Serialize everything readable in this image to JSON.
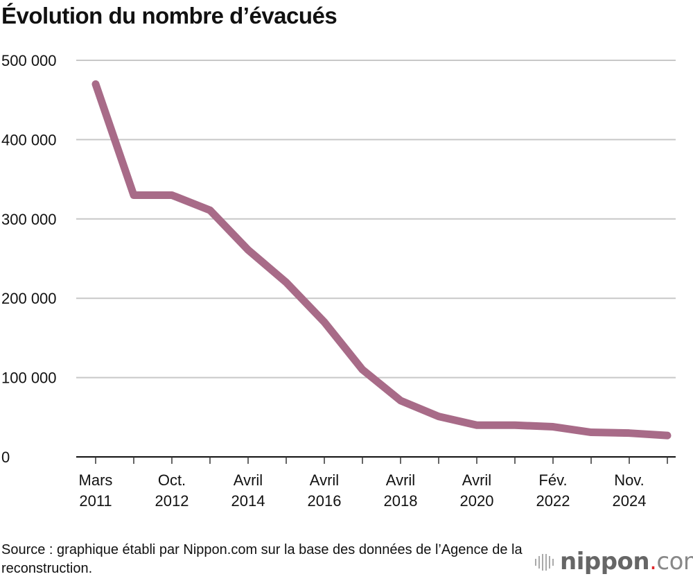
{
  "chart_data": {
    "type": "line",
    "title": "Évolution du nombre d’évacués",
    "xlabel": "",
    "ylabel": "",
    "ylim": [
      0,
      500000
    ],
    "yticks": [
      0,
      100000,
      200000,
      300000,
      400000,
      500000
    ],
    "ytick_labels": [
      "0",
      "100 000",
      "200 000",
      "300 000",
      "400 000",
      "500 000"
    ],
    "grid": true,
    "x_tick_labels": [
      {
        "index": 0,
        "line1": "Mars",
        "line2": "2011"
      },
      {
        "index": 2,
        "line1": "Oct.",
        "line2": "2012"
      },
      {
        "index": 4,
        "line1": "Avril",
        "line2": "2014"
      },
      {
        "index": 6,
        "line1": "Avril",
        "line2": "2016"
      },
      {
        "index": 8,
        "line1": "Avril",
        "line2": "2018"
      },
      {
        "index": 10,
        "line1": "Avril",
        "line2": "2020"
      },
      {
        "index": 12,
        "line1": "Fév.",
        "line2": "2022"
      },
      {
        "index": 14,
        "line1": "Nov.",
        "line2": "2024"
      }
    ],
    "series": [
      {
        "color": "#a86b88",
        "values": [
          470000,
          330000,
          330000,
          311000,
          261000,
          220000,
          170000,
          110000,
          71000,
          51000,
          40000,
          40000,
          38000,
          31000,
          30000,
          27000
        ]
      }
    ]
  },
  "source": "Source : graphique établi par Nippon.com sur la base des données de l’Agence de la reconstruction.",
  "logo": {
    "text": "nippon.com"
  }
}
